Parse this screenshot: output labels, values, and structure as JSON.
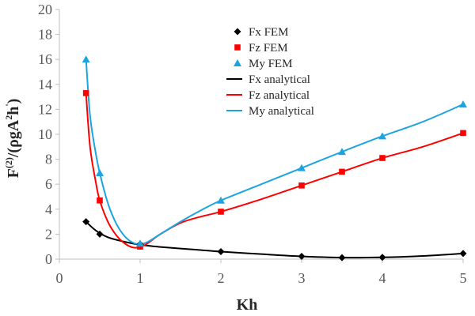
{
  "chart_data": {
    "type": "line",
    "xlabel": "Kh",
    "ylabel": "F(2)/(ρgA2h')",
    "ylabel_parts": {
      "main": "F",
      "sup1": "(2)",
      "mid": "/(ρgA",
      "sup2": "2",
      "end": "h",
      "sup3": "'",
      "close": ")"
    },
    "xlim": [
      0,
      5
    ],
    "ylim": [
      0,
      20
    ],
    "xticks": [
      "0",
      "1",
      "2",
      "3",
      "4",
      "5"
    ],
    "yticks": [
      "0",
      "2",
      "4",
      "6",
      "8",
      "10",
      "12",
      "14",
      "16",
      "18",
      "20"
    ],
    "grid": false,
    "legend_position": "top-center",
    "series": [
      {
        "name": "Fx FEM",
        "kind": "marker",
        "marker": "diamond",
        "color": "#000000",
        "x": [
          0.33,
          0.5,
          1.0,
          2.0,
          3.0,
          3.5,
          4.0,
          5.0
        ],
        "y": [
          3.0,
          2.0,
          1.2,
          0.6,
          0.22,
          0.12,
          0.14,
          0.45
        ]
      },
      {
        "name": "Fz FEM",
        "kind": "marker",
        "marker": "square",
        "color": "#ff0000",
        "x": [
          0.33,
          0.5,
          1.0,
          2.0,
          3.0,
          3.5,
          4.0,
          5.0
        ],
        "y": [
          13.3,
          4.7,
          1.0,
          3.8,
          5.9,
          7.0,
          8.1,
          10.1
        ]
      },
      {
        "name": "My FEM",
        "kind": "marker",
        "marker": "triangle",
        "color": "#1ba5e0",
        "x": [
          0.33,
          0.5,
          1.0,
          2.0,
          3.0,
          3.5,
          4.0,
          5.0
        ],
        "y": [
          16.0,
          6.9,
          1.25,
          4.7,
          7.3,
          8.6,
          9.85,
          12.4
        ]
      },
      {
        "name": "Fx analytical",
        "kind": "line",
        "color": "#000000",
        "x": [
          0.33,
          0.45,
          0.6,
          0.8,
          1.0,
          1.3,
          1.7,
          2.0,
          2.5,
          3.0,
          3.5,
          4.0,
          4.5,
          5.0
        ],
        "y": [
          3.0,
          2.3,
          1.75,
          1.4,
          1.15,
          0.95,
          0.75,
          0.6,
          0.4,
          0.22,
          0.12,
          0.14,
          0.25,
          0.45
        ]
      },
      {
        "name": "Fz analytical",
        "kind": "line",
        "color": "#ff0000",
        "x": [
          0.33,
          0.38,
          0.45,
          0.5,
          0.6,
          0.7,
          0.8,
          0.9,
          1.0,
          1.1,
          1.25,
          1.5,
          1.75,
          2.0,
          2.5,
          3.0,
          3.5,
          4.0,
          4.5,
          5.0
        ],
        "y": [
          13.3,
          9.0,
          6.2,
          4.7,
          3.0,
          1.95,
          1.3,
          0.95,
          0.95,
          1.3,
          2.0,
          2.9,
          3.4,
          3.8,
          4.8,
          5.9,
          7.0,
          8.1,
          9.0,
          10.1
        ]
      },
      {
        "name": "My analytical",
        "kind": "line",
        "color": "#1ba5e0",
        "x": [
          0.33,
          0.38,
          0.45,
          0.5,
          0.6,
          0.7,
          0.8,
          0.9,
          1.0,
          1.1,
          1.25,
          1.5,
          1.75,
          2.0,
          2.5,
          3.0,
          3.5,
          4.0,
          4.5,
          5.0
        ],
        "y": [
          16.0,
          11.5,
          8.5,
          6.9,
          4.5,
          2.9,
          1.9,
          1.35,
          1.2,
          1.4,
          2.0,
          3.0,
          3.9,
          4.7,
          6.0,
          7.3,
          8.6,
          9.85,
          11.0,
          12.4
        ]
      }
    ]
  }
}
